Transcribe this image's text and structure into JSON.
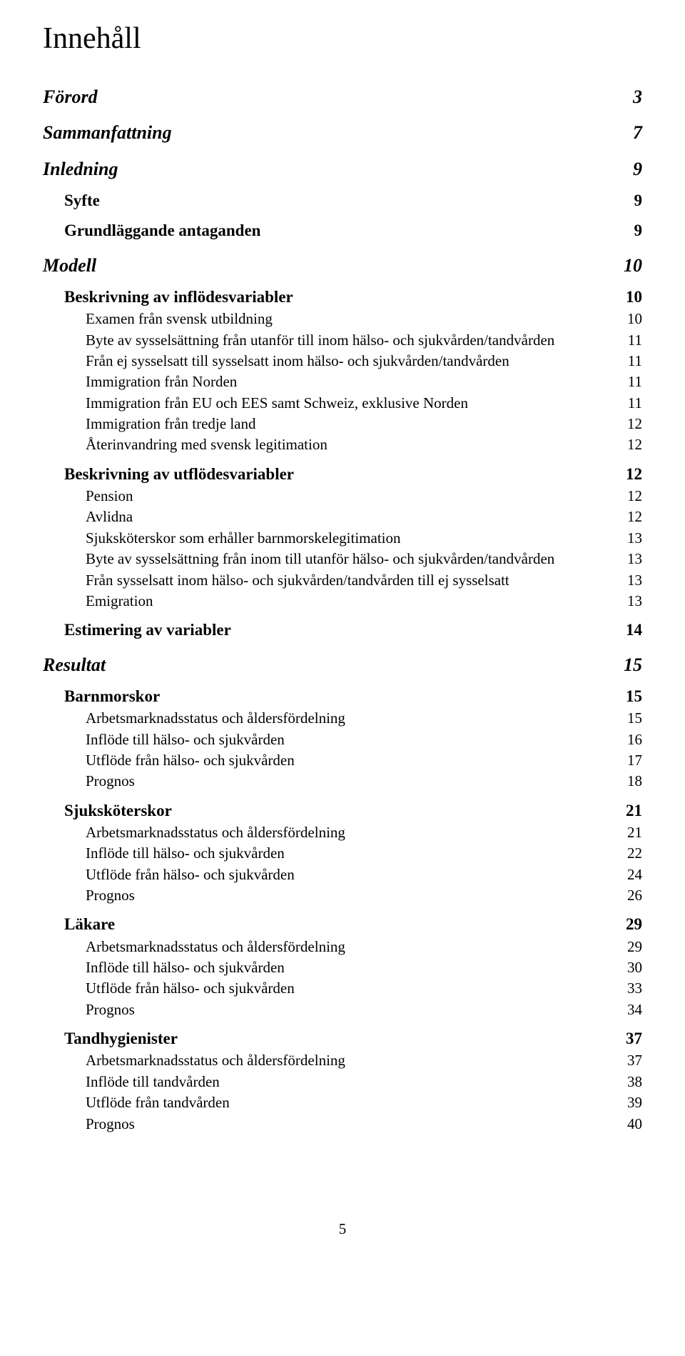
{
  "title": "Innehåll",
  "page_number": "5",
  "entries": [
    {
      "level": 0,
      "label": "Förord",
      "page": "3"
    },
    {
      "level": 0,
      "label": "Sammanfattning",
      "page": "7"
    },
    {
      "level": 0,
      "label": "Inledning",
      "page": "9"
    },
    {
      "level": 1,
      "label": "Syfte",
      "page": "9"
    },
    {
      "level": 1,
      "label": "Grundläggande antaganden",
      "page": "9"
    },
    {
      "level": 0,
      "label": "Modell",
      "page": "10"
    },
    {
      "level": 1,
      "label": "Beskrivning av inflödesvariabler",
      "page": "10"
    },
    {
      "level": 2,
      "label": "Examen från svensk utbildning",
      "page": "10"
    },
    {
      "level": 2,
      "label": "Byte av sysselsättning från utanför till inom hälso- och sjukvården/tandvården",
      "page": "11"
    },
    {
      "level": 2,
      "label": "Från ej sysselsatt till sysselsatt inom hälso- och sjukvården/tandvården",
      "page": "11"
    },
    {
      "level": 2,
      "label": "Immigration från Norden",
      "page": "11"
    },
    {
      "level": 2,
      "label": "Immigration från EU och EES samt Schweiz, exklusive Norden",
      "page": "11"
    },
    {
      "level": 2,
      "label": "Immigration från tredje land",
      "page": "12"
    },
    {
      "level": 2,
      "label": "Återinvandring med svensk legitimation",
      "page": "12"
    },
    {
      "level": 1,
      "label": "Beskrivning av utflödesvariabler",
      "page": "12"
    },
    {
      "level": 2,
      "label": "Pension",
      "page": "12"
    },
    {
      "level": 2,
      "label": "Avlidna",
      "page": "12"
    },
    {
      "level": 2,
      "label": "Sjuksköterskor som erhåller barnmorskelegitimation",
      "page": "13"
    },
    {
      "level": 2,
      "label": "Byte av sysselsättning från inom till utanför hälso- och sjukvården/tandvården",
      "page": "13"
    },
    {
      "level": 2,
      "label": "Från sysselsatt inom hälso- och sjukvården/tandvården till ej sysselsatt",
      "page": "13"
    },
    {
      "level": 2,
      "label": "Emigration",
      "page": "13"
    },
    {
      "level": 1,
      "label": "Estimering av variabler",
      "page": "14"
    },
    {
      "level": 0,
      "label": "Resultat",
      "page": "15"
    },
    {
      "level": 1,
      "label": "Barnmorskor",
      "page": "15"
    },
    {
      "level": 2,
      "label": "Arbetsmarknadsstatus och åldersfördelning",
      "page": "15"
    },
    {
      "level": 2,
      "label": "Inflöde till hälso- och sjukvården",
      "page": "16"
    },
    {
      "level": 2,
      "label": "Utflöde från hälso- och sjukvården",
      "page": "17"
    },
    {
      "level": 2,
      "label": "Prognos",
      "page": "18"
    },
    {
      "level": 1,
      "label": "Sjuksköterskor",
      "page": "21"
    },
    {
      "level": 2,
      "label": "Arbetsmarknadsstatus och åldersfördelning",
      "page": "21"
    },
    {
      "level": 2,
      "label": "Inflöde till hälso- och sjukvården",
      "page": "22"
    },
    {
      "level": 2,
      "label": "Utflöde från hälso- och sjukvården",
      "page": "24"
    },
    {
      "level": 2,
      "label": "Prognos",
      "page": "26"
    },
    {
      "level": 1,
      "label": "Läkare",
      "page": "29"
    },
    {
      "level": 2,
      "label": "Arbetsmarknadsstatus och åldersfördelning",
      "page": "29"
    },
    {
      "level": 2,
      "label": "Inflöde till hälso- och sjukvården",
      "page": "30"
    },
    {
      "level": 2,
      "label": "Utflöde från hälso- och sjukvården",
      "page": "33"
    },
    {
      "level": 2,
      "label": "Prognos",
      "page": "34"
    },
    {
      "level": 1,
      "label": "Tandhygienister",
      "page": "37"
    },
    {
      "level": 2,
      "label": "Arbetsmarknadsstatus och åldersfördelning",
      "page": "37"
    },
    {
      "level": 2,
      "label": "Inflöde till tandvården",
      "page": "38"
    },
    {
      "level": 2,
      "label": "Utflöde från tandvården",
      "page": "39"
    },
    {
      "level": 2,
      "label": "Prognos",
      "page": "40"
    }
  ]
}
